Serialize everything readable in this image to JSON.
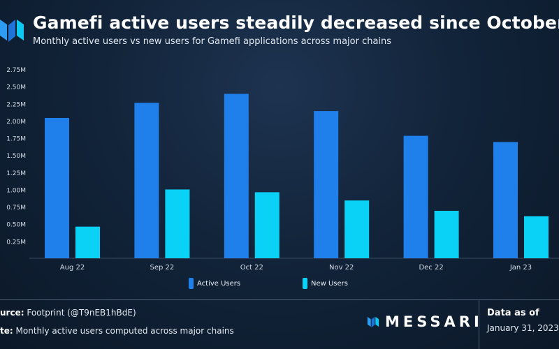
{
  "header": {
    "title": "Gamefi active users steadily decreased since October",
    "subtitle": "Monthly active users vs new users for Gamefi applications across major chains"
  },
  "chart_data": {
    "type": "bar",
    "categories": [
      "Aug 22",
      "Sep 22",
      "Oct 22",
      "Nov 22",
      "Dec 22",
      "Jan 23"
    ],
    "series": [
      {
        "name": "Active Users",
        "color": "#1f80ec",
        "values": [
          2.04,
          2.26,
          2.39,
          2.14,
          1.78,
          1.69
        ]
      },
      {
        "name": "New Users",
        "color": "#0ad2f6",
        "values": [
          0.46,
          1.0,
          0.96,
          0.84,
          0.69,
          0.61
        ]
      }
    ],
    "y_ticks": [
      "0.25M",
      "0.50M",
      "0.75M",
      "1.00M",
      "1.25M",
      "1.50M",
      "1.75M",
      "2.00M",
      "2.25M",
      "2.50M",
      "2.75M"
    ],
    "ylim": [
      0,
      2.75
    ],
    "unit": "M",
    "ylabel": "",
    "grid": false,
    "legend_position": "bottom"
  },
  "footer": {
    "source_prefix": "urce:",
    "source_text": "Footprint (@T9nEB1hBdE)",
    "note_prefix": "te:",
    "note_text": "Monthly active users computed across major chains",
    "brand": "MESSARI",
    "data_as_of_label": "Data as of",
    "data_as_of_date": "January 31, 2023"
  }
}
